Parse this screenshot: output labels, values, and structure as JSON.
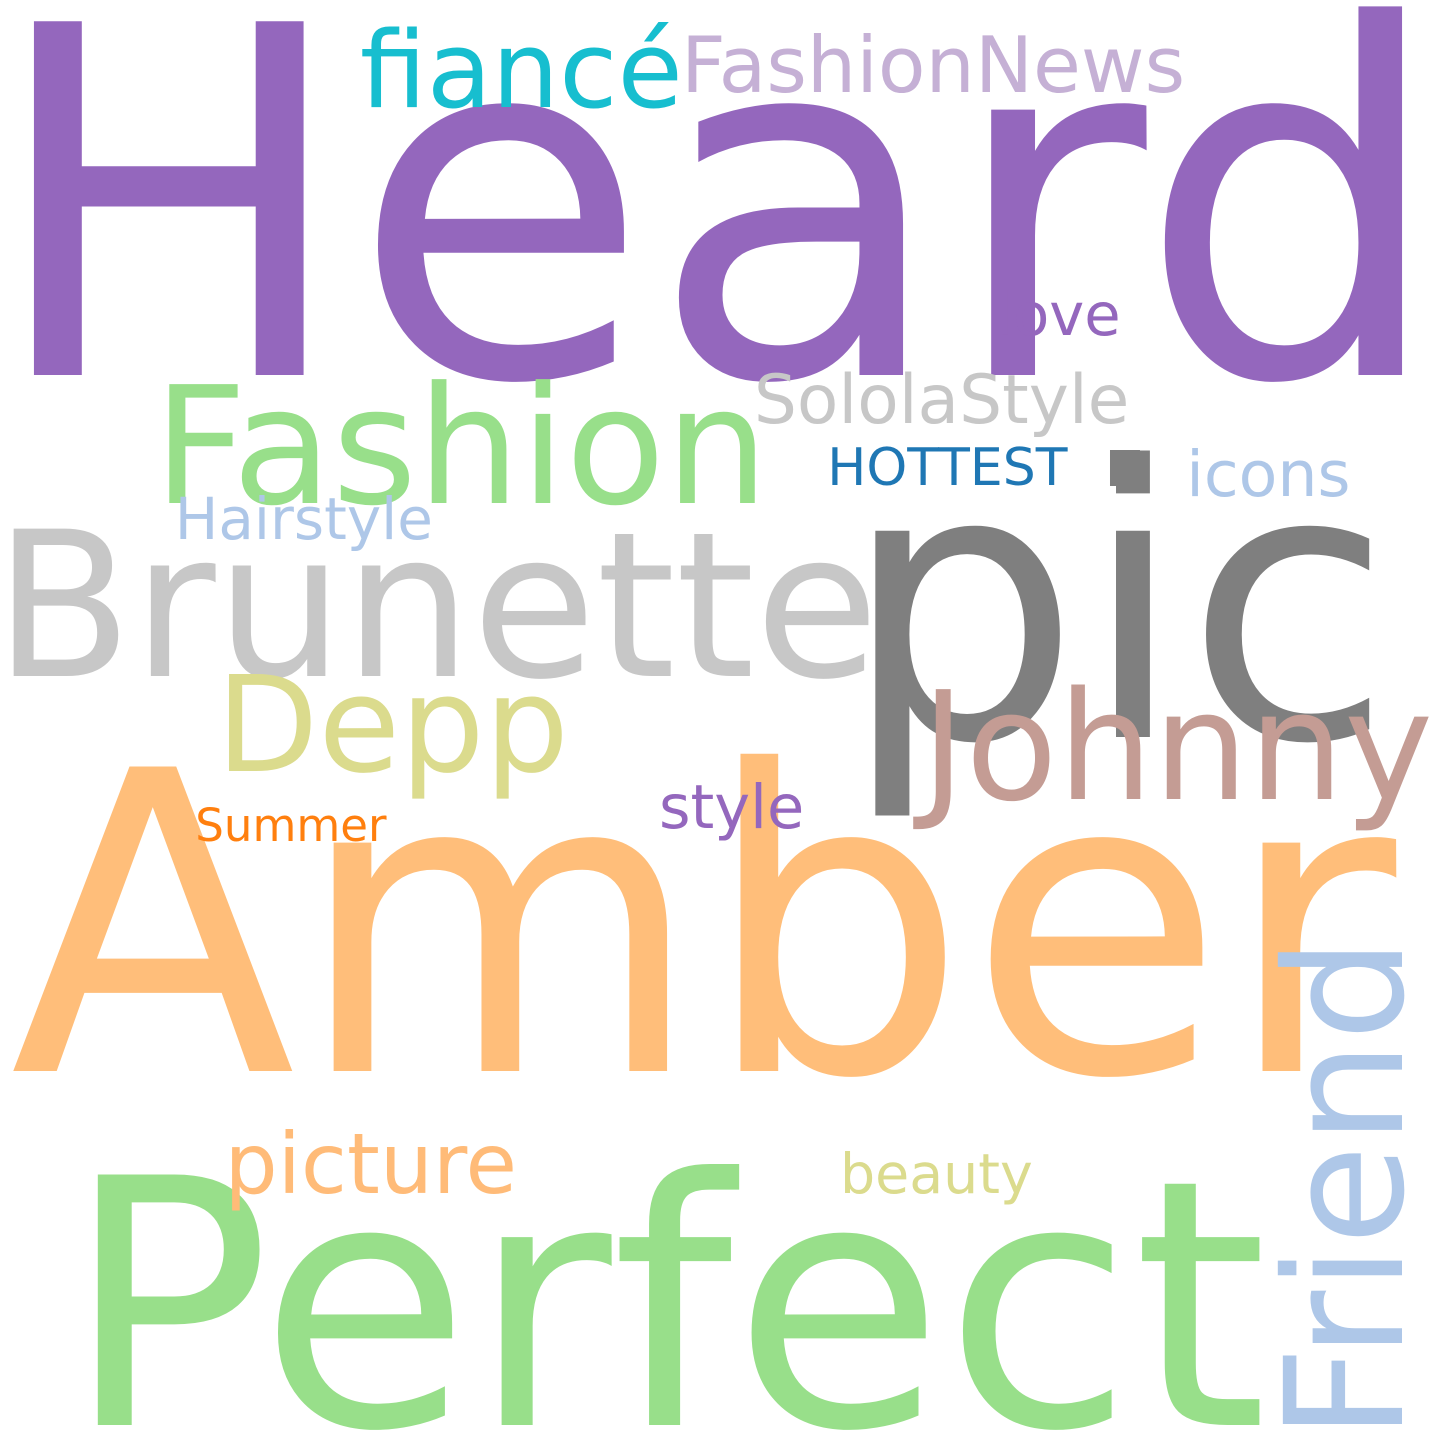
{
  "words": [
    {
      "id": "heard",
      "text": "Heard",
      "color": "#9467bd"
    },
    {
      "id": "amber",
      "text": "Amber",
      "color": "#ffbe7a"
    },
    {
      "id": "perfect",
      "text": "Perfect",
      "color": "#98df8a"
    },
    {
      "id": "pic",
      "text": "pic",
      "color": "#7f7f7f"
    },
    {
      "id": "brunette",
      "text": "Brunette",
      "color": "#c7c7c7"
    },
    {
      "id": "fashion",
      "text": "Fashion",
      "color": "#98df8a"
    },
    {
      "id": "johnny",
      "text": "Johnny",
      "color": "#c49c94"
    },
    {
      "id": "depp",
      "text": "Depp",
      "color": "#dbdb8d"
    },
    {
      "id": "friend",
      "text": "Friend",
      "color": "#aec7e8"
    },
    {
      "id": "picture",
      "text": "picture",
      "color": "#ffbb78"
    },
    {
      "id": "fiance",
      "text": "fiancé",
      "color": "#17becf"
    },
    {
      "id": "fashionnews",
      "text": "FashionNews",
      "color": "#c5b0d5"
    },
    {
      "id": "sololastyle",
      "text": "SololaStyle",
      "color": "#c7c7c7"
    },
    {
      "id": "dot",
      "text": "·",
      "color": "#7f7f7f"
    },
    {
      "id": "hottest",
      "text": "HOTTEST",
      "color": "#1f77b4"
    },
    {
      "id": "icons",
      "text": "icons",
      "color": "#aec7e8"
    },
    {
      "id": "hairstyle",
      "text": "Hairstyle",
      "color": "#aec7e8"
    },
    {
      "id": "love",
      "text": "love",
      "color": "#9467bd"
    },
    {
      "id": "style",
      "text": "style",
      "color": "#9467bd"
    },
    {
      "id": "summer",
      "text": "Summer",
      "color": "#ff7f0e"
    },
    {
      "id": "beauty",
      "text": "beauty",
      "color": "#dbdb8d"
    }
  ]
}
